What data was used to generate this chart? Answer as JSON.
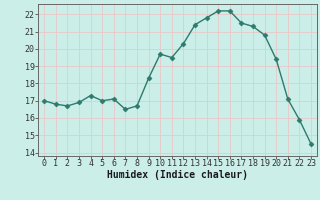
{
  "x": [
    0,
    1,
    2,
    3,
    4,
    5,
    6,
    7,
    8,
    9,
    10,
    11,
    12,
    13,
    14,
    15,
    16,
    17,
    18,
    19,
    20,
    21,
    22,
    23
  ],
  "y": [
    17.0,
    16.8,
    16.7,
    16.9,
    17.3,
    17.0,
    17.1,
    16.5,
    16.7,
    18.3,
    19.7,
    19.5,
    20.3,
    21.4,
    21.8,
    22.2,
    22.2,
    21.5,
    21.3,
    20.8,
    19.4,
    17.1,
    15.9,
    14.5
  ],
  "line_color": "#2d7a6e",
  "marker": "D",
  "marker_size": 2.5,
  "xlabel": "Humidex (Indice chaleur)",
  "bg_color": "#cceee8",
  "grid_color": "#e8c8c8",
  "ylim": [
    13.8,
    22.6
  ],
  "xlim": [
    -0.5,
    23.5
  ],
  "yticks": [
    14,
    15,
    16,
    17,
    18,
    19,
    20,
    21,
    22
  ],
  "xticks": [
    0,
    1,
    2,
    3,
    4,
    5,
    6,
    7,
    8,
    9,
    10,
    11,
    12,
    13,
    14,
    15,
    16,
    17,
    18,
    19,
    20,
    21,
    22,
    23
  ],
  "xlabel_fontsize": 7,
  "tick_fontsize": 6
}
